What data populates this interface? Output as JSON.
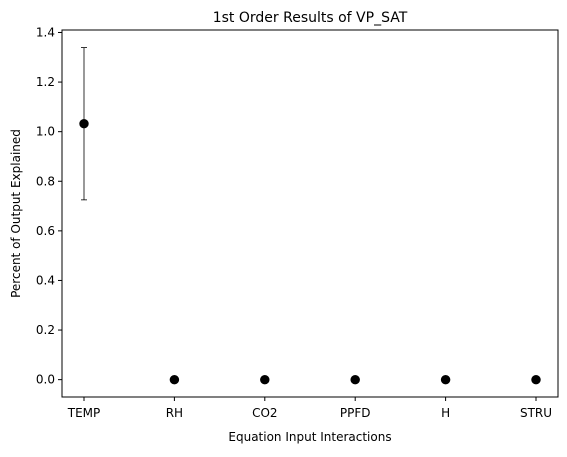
{
  "chart_data": {
    "type": "scatter",
    "title": "1st Order Results of VP_SAT",
    "xlabel": "Equation Input Interactions",
    "ylabel": "Percent of Output Explained",
    "categories": [
      "TEMP",
      "RH",
      "CO2",
      "PPFD",
      "H",
      "STRU"
    ],
    "values": [
      1.032,
      0.0,
      0.0,
      0.0,
      0.0,
      0.0
    ],
    "error_bars": [
      0.307,
      0.0,
      0.0,
      0.0,
      0.0,
      0.0
    ],
    "ylim": [
      -0.07,
      1.41
    ],
    "yticks": [
      0.0,
      0.2,
      0.4,
      0.6,
      0.8,
      1.0,
      1.2,
      1.4
    ],
    "ytick_labels": [
      "0.0",
      "0.2",
      "0.4",
      "0.6",
      "0.8",
      "1.0",
      "1.2",
      "1.4"
    ],
    "grid": false,
    "marker_color": "#000000"
  }
}
